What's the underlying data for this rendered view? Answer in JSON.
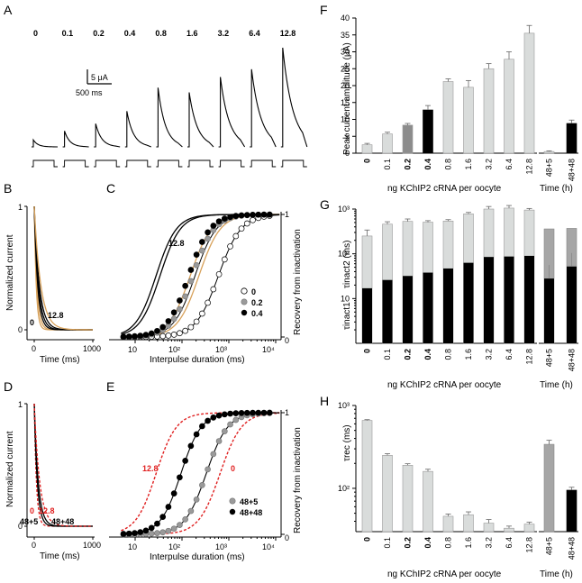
{
  "panels": {
    "A": {
      "label": "A",
      "doses": [
        "0",
        "0.1",
        "0.2",
        "0.4",
        "0.8",
        "1.6",
        "3.2",
        "6.4",
        "12.8"
      ],
      "peak_uA": [
        2.5,
        5.7,
        8.3,
        12.8,
        21.2,
        19.5,
        25.0,
        27.8,
        35.5
      ],
      "scale_current": "5 μA",
      "scale_time": "500 ms"
    },
    "B": {
      "label": "B",
      "ylabel": "Normalized current",
      "xlabel": "Time (ms)",
      "yticks": [
        "0",
        "1"
      ],
      "xticks": [
        "0",
        "1000"
      ],
      "annot_low": "0",
      "annot_high": "12.8"
    },
    "C": {
      "label": "C",
      "ylabel": "Recovery from inactivation",
      "xlabel": "Interpulse duration (ms)",
      "yticks": [
        "0",
        "1"
      ],
      "xticks": [
        "10",
        "10²",
        "10³",
        "10⁴"
      ],
      "annot": "12.8",
      "legend": [
        "0",
        "0.2",
        "0.4"
      ]
    },
    "D": {
      "label": "D",
      "ylabel": "Normalized current",
      "xlabel": "Time (ms)",
      "yticks": [
        "0",
        "1"
      ],
      "xticks": [
        "0",
        "1000"
      ],
      "annot_red_a": "0",
      "annot_red_b": "12.8",
      "annot_a": "48+5",
      "annot_b": "48+48"
    },
    "E": {
      "label": "E",
      "ylabel": "Recovery from inactivation",
      "xlabel": "Interpulse duration (ms)",
      "yticks": [
        "0",
        "1"
      ],
      "xticks": [
        "10",
        "10²",
        "10³",
        "10⁴"
      ],
      "annot_red_a": "12.8",
      "annot_red_b": "0",
      "legend": [
        "48+5",
        "48+48"
      ]
    },
    "F": {
      "label": "F",
      "ylabel": "Peak current amplitude (μA)",
      "yticks": [
        "0",
        "5",
        "10",
        "15",
        "20",
        "25",
        "30",
        "35",
        "40"
      ]
    },
    "G": {
      "label": "G",
      "ylabel_top": "τinact2  (ms)",
      "ylabel_bottom": "τinact1",
      "yticks": [
        "10",
        "10²",
        "10³"
      ]
    },
    "H": {
      "label": "H",
      "ylabel": "τrec  (ms)",
      "yticks": [
        "10²",
        "10³"
      ]
    }
  },
  "shared": {
    "xlabel_dose": "ng KChIP2 cRNA per oocyte",
    "xlabel_time": "Time (h)"
  },
  "chart_data": [
    {
      "panel": "F",
      "type": "bar",
      "categories": [
        "0",
        "0.1",
        "0.2",
        "0.4",
        "0.8",
        "1.6",
        "3.2",
        "6.4",
        "12.8"
      ],
      "values": [
        2.5,
        5.7,
        8.3,
        12.8,
        21.2,
        19.5,
        25.0,
        27.8,
        35.5
      ],
      "errors": [
        0.4,
        0.5,
        0.5,
        1.3,
        0.8,
        2.0,
        1.5,
        2.2,
        2.3
      ],
      "ylim": [
        0,
        40
      ],
      "time_categories": [
        "48+5",
        "48+48"
      ],
      "time_values": [
        0.5,
        8.8
      ],
      "time_errors": [
        0.2,
        1.0
      ]
    },
    {
      "panel": "G",
      "type": "bar",
      "scale": "log",
      "categories": [
        "0",
        "0.1",
        "0.2",
        "0.4",
        "0.8",
        "1.6",
        "3.2",
        "6.4",
        "12.8"
      ],
      "series": [
        {
          "values": [
            17,
            26,
            32,
            38,
            47,
            63,
            85,
            87,
            90
          ]
        },
        {
          "values": [
            250,
            460,
            530,
            510,
            540,
            780,
            1000,
            1050,
            950
          ]
        }
      ],
      "errors_slow": [
        90,
        60,
        70,
        40,
        40,
        60,
        140,
        150,
        80
      ],
      "ylim": [
        1,
        1000
      ],
      "time_categories": [
        "48+5",
        "48+48"
      ],
      "time_series": [
        {
          "values": [
            28,
            52
          ]
        },
        {
          "values": [
            360,
            370
          ]
        }
      ]
    },
    {
      "panel": "H",
      "type": "bar",
      "scale": "log",
      "categories": [
        "0",
        "0.1",
        "0.2",
        "0.4",
        "0.8",
        "1.6",
        "3.2",
        "6.4",
        "12.8"
      ],
      "values": [
        660,
        250,
        190,
        160,
        46,
        48,
        38,
        33,
        37
      ],
      "errors": [
        15,
        12,
        8,
        10,
        3,
        4,
        4,
        2,
        2
      ],
      "ylim": [
        30,
        1000
      ],
      "time_categories": [
        "48+5",
        "48+48"
      ],
      "time_values": [
        340,
        95
      ],
      "time_errors": [
        40,
        8
      ]
    }
  ],
  "colors": {
    "light_bar": "#d9dcdb",
    "mid_bar": "#8c8c8c",
    "dark_bar": "#000000",
    "orange": "#d7a15a",
    "red": "#e02020",
    "grey_marker": "#9a9a9a"
  }
}
